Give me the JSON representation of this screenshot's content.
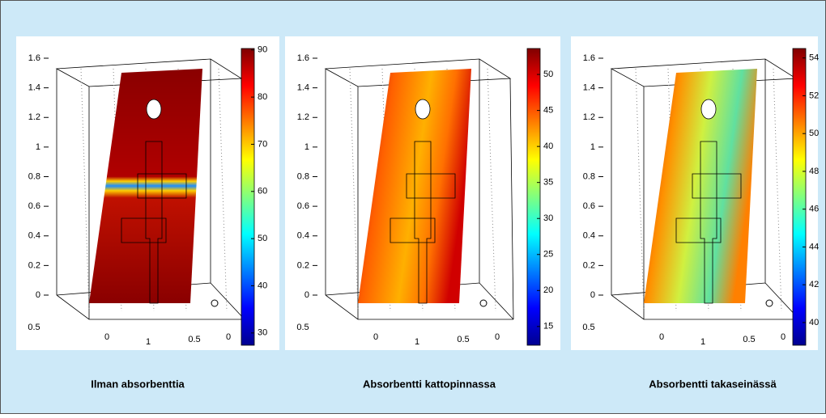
{
  "panels": [
    {
      "caption": "Ilman absorbenttia",
      "z_lim": [
        0,
        1.6
      ],
      "z_ticks": [
        0,
        0.2,
        0.4,
        0.6,
        0.8,
        1,
        1.2,
        1.4,
        1.6
      ],
      "base_ticks": [
        0.5,
        0,
        1,
        0.5,
        0
      ],
      "colorbar": {
        "lim": [
          27.4,
          90.3
        ],
        "ticks": [
          30,
          40,
          50,
          60,
          70,
          80,
          90
        ]
      }
    },
    {
      "caption": "Absorbentti kattopinnassa",
      "z_lim": [
        0,
        1.6
      ],
      "z_ticks": [
        0,
        0.2,
        0.4,
        0.6,
        0.8,
        1,
        1.2,
        1.4,
        1.6
      ],
      "base_ticks": [
        0.5,
        0,
        1,
        0.5,
        0
      ],
      "colorbar": {
        "lim": [
          12.4,
          53.6
        ],
        "ticks": [
          15,
          20,
          25,
          30,
          35,
          40,
          45,
          50
        ]
      }
    },
    {
      "caption": "Absorbentti takaseinässä",
      "z_lim": [
        0,
        1.6
      ],
      "z_ticks": [
        0,
        0.2,
        0.4,
        0.6,
        0.8,
        1,
        1.2,
        1.4,
        1.6
      ],
      "base_ticks": [
        0.5,
        0,
        1,
        0.5,
        0
      ],
      "colorbar": {
        "lim": [
          38.8,
          54.5
        ],
        "ticks": [
          40,
          42,
          44,
          46,
          48,
          50,
          52,
          54
        ]
      }
    }
  ]
}
